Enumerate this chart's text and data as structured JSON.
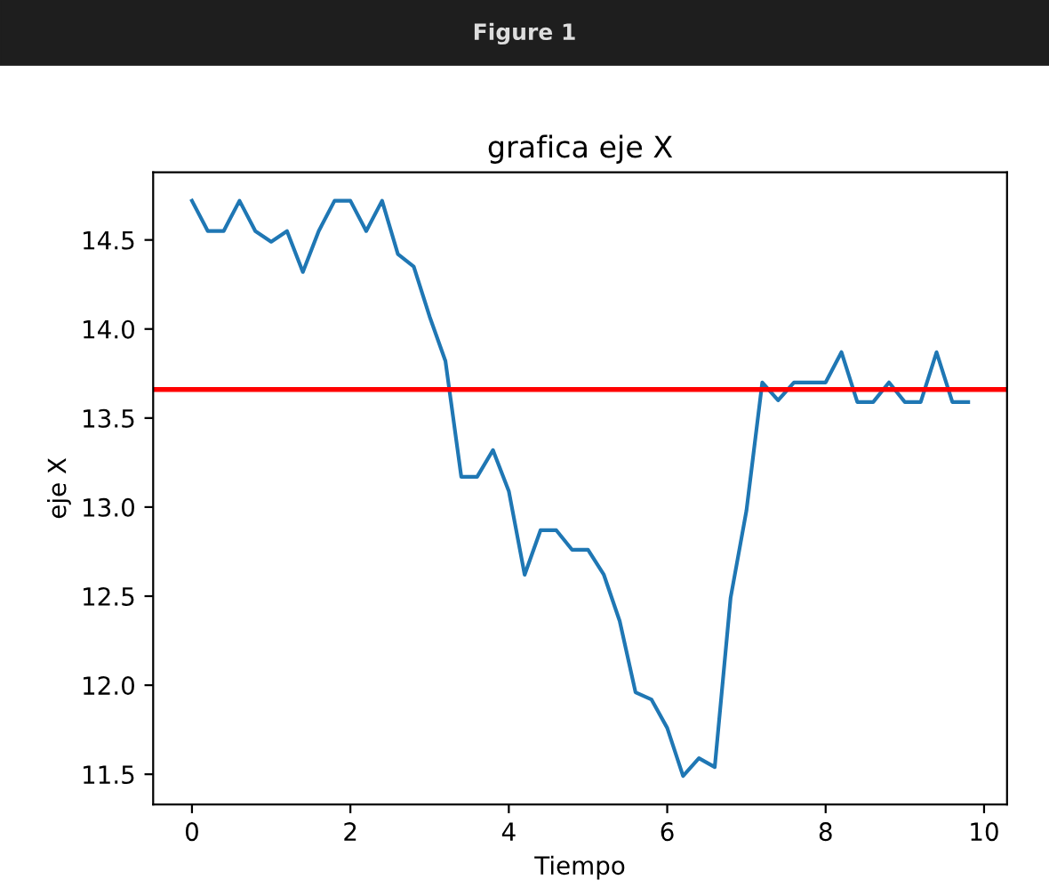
{
  "chart_data": {
    "type": "line",
    "title": "grafica eje X",
    "xlabel": "Tiempo",
    "ylabel": "eje X",
    "annotations": [
      "Figure 1"
    ],
    "x": [
      0,
      0.2,
      0.4,
      0.6,
      0.8,
      1.0,
      1.2,
      1.4,
      1.6,
      1.8,
      2.0,
      2.2,
      2.4,
      2.6,
      2.8,
      3.0,
      3.2,
      3.4,
      3.6,
      3.8,
      4.0,
      4.2,
      4.4,
      4.6,
      4.8,
      5.0,
      5.2,
      5.4,
      5.6,
      5.8,
      6.0,
      6.2,
      6.4,
      6.6,
      6.8,
      7.0,
      7.2,
      7.4,
      7.6,
      7.8,
      8.0,
      8.2,
      8.4,
      8.6,
      8.8,
      9.0,
      9.2,
      9.4,
      9.6,
      9.8
    ],
    "series": [
      {
        "color": "#1f77b4",
        "values": [
          14.72,
          14.55,
          14.55,
          14.72,
          14.55,
          14.49,
          14.55,
          14.32,
          14.55,
          14.72,
          14.72,
          14.55,
          14.72,
          14.42,
          14.35,
          14.07,
          13.82,
          13.17,
          13.17,
          13.32,
          13.09,
          12.62,
          12.87,
          12.87,
          12.76,
          12.76,
          12.62,
          12.36,
          11.96,
          11.92,
          11.76,
          11.49,
          11.59,
          11.54,
          12.49,
          12.98,
          13.7,
          13.6,
          13.7,
          13.7,
          13.7,
          13.87,
          13.59,
          13.59,
          13.7,
          13.59,
          13.59,
          13.87,
          13.59,
          13.59
        ]
      }
    ],
    "ref_lines": [
      {
        "axis": "y",
        "value": 13.66,
        "color": "#ff0000",
        "line_style": "solid"
      }
    ],
    "xlim": [
      -0.49,
      10.29
    ],
    "xticks": [
      0,
      2,
      4,
      6,
      8,
      10
    ],
    "ylim": [
      11.33,
      14.88
    ],
    "yticks": [
      11.5,
      {
        "value": 12,
        "label": "12.0"
      },
      12.5,
      {
        "value": 13,
        "label": "13.0"
      },
      13.5,
      {
        "value": 14,
        "label": "14.0"
      },
      14.5
    ],
    "grid": false,
    "legend": false
  }
}
